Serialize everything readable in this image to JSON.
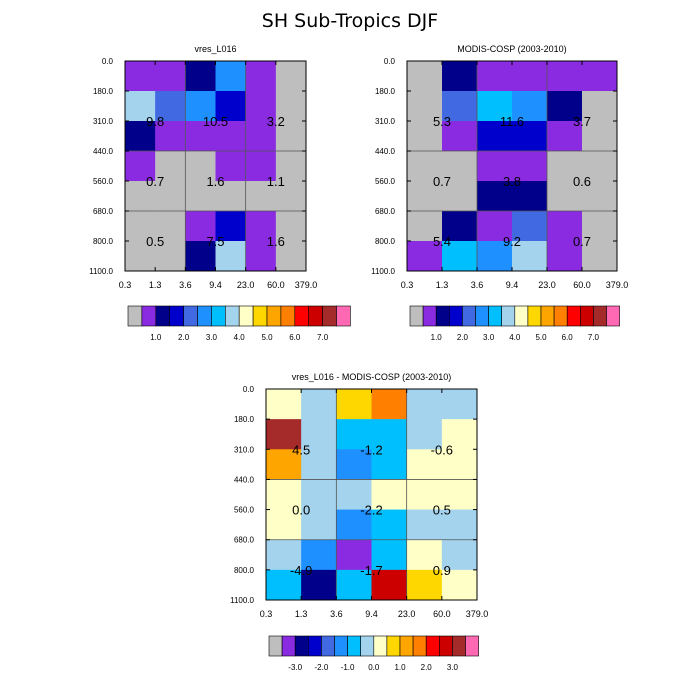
{
  "title": "SH Sub-Tropics DJF",
  "x_ticks": [
    "0.3",
    "1.3",
    "3.6",
    "9.4",
    "23.0",
    "60.0",
    "379.0"
  ],
  "y_ticks": [
    "0.0",
    "180.0",
    "310.0",
    "440.0",
    "560.0",
    "680.0",
    "800.0",
    "1100.0"
  ],
  "colors": {
    "gray": "#bebebe",
    "violet": "#8a2be2",
    "navy": "#00008b",
    "blue": "#0000cd",
    "royal": "#4169e1",
    "dodger": "#1e90ff",
    "sky": "#00bfff",
    "light": "#a4d3ee",
    "cream": "#ffffc8",
    "gold": "#ffd700",
    "orange": "#ffa500",
    "darkorange": "#ff7f00",
    "red": "#ff0000",
    "red3": "#cd0000",
    "brown": "#a52a2a",
    "pink": "#ff69b4"
  },
  "colorbar_abs": {
    "labels": [
      "1.0",
      "2.0",
      "3.0",
      "4.0",
      "5.0",
      "6.0",
      "7.0"
    ],
    "boxes": [
      "gray",
      "violet",
      "navy",
      "blue",
      "royal",
      "dodger",
      "sky",
      "light",
      "cream",
      "gold",
      "orange",
      "darkorange",
      "red",
      "red3",
      "brown",
      "pink"
    ]
  },
  "colorbar_diff": {
    "labels": [
      "-3.0",
      "-2.0",
      "-1.0",
      "0.0",
      "1.0",
      "2.0",
      "3.0"
    ],
    "boxes": [
      "gray",
      "violet",
      "navy",
      "blue",
      "royal",
      "dodger",
      "sky",
      "light",
      "cream",
      "gold",
      "orange",
      "darkorange",
      "red",
      "red3",
      "brown",
      "pink"
    ]
  },
  "chart_data": [
    {
      "type": "heatmap",
      "title": "vres_L016",
      "x_ticks": [
        "0.3",
        "1.3",
        "3.6",
        "9.4",
        "23.0",
        "60.0",
        "379.0"
      ],
      "y_ticks": [
        "0.0",
        "180.0",
        "310.0",
        "440.0",
        "560.0",
        "680.0",
        "800.0",
        "1100.0"
      ],
      "cells": [
        [
          "violet",
          "violet",
          "navy",
          "dodger",
          "violet",
          "gray"
        ],
        [
          "light",
          "royal",
          "dodger",
          "blue",
          "violet",
          "gray"
        ],
        [
          "navy",
          "violet",
          "violet",
          "violet",
          "violet",
          "gray"
        ],
        [
          "violet",
          "gray",
          "gray",
          "violet",
          "violet",
          "gray"
        ],
        [
          "gray",
          "gray",
          "gray",
          "gray",
          "gray",
          "gray"
        ],
        [
          "gray",
          "gray",
          "violet",
          "blue",
          "violet",
          "gray"
        ],
        [
          "gray",
          "gray",
          "navy",
          "light",
          "violet",
          "gray"
        ]
      ],
      "box_values": [
        [
          "9.8",
          "10.5",
          "3.2"
        ],
        [
          "0.7",
          "1.6",
          "1.1"
        ],
        [
          "0.5",
          "7.5",
          "1.6"
        ]
      ]
    },
    {
      "type": "heatmap",
      "title": "MODIS-COSP (2003-2010)",
      "x_ticks": [
        "0.3",
        "1.3",
        "3.6",
        "9.4",
        "23.0",
        "60.0",
        "379.0"
      ],
      "y_ticks": [
        "0.0",
        "180.0",
        "310.0",
        "440.0",
        "560.0",
        "680.0",
        "800.0",
        "1100.0"
      ],
      "cells": [
        [
          "gray",
          "navy",
          "violet",
          "violet",
          "violet",
          "violet"
        ],
        [
          "gray",
          "royal",
          "sky",
          "dodger",
          "navy",
          "gray"
        ],
        [
          "gray",
          "violet",
          "blue",
          "blue",
          "violet",
          "gray"
        ],
        [
          "gray",
          "gray",
          "violet",
          "violet",
          "gray",
          "gray"
        ],
        [
          "gray",
          "gray",
          "navy",
          "navy",
          "gray",
          "gray"
        ],
        [
          "gray",
          "navy",
          "violet",
          "royal",
          "violet",
          "gray"
        ],
        [
          "violet",
          "sky",
          "dodger",
          "light",
          "violet",
          "gray"
        ]
      ],
      "box_values": [
        [
          "5.3",
          "11.6",
          "3.7"
        ],
        [
          "0.7",
          "3.8",
          "0.6"
        ],
        [
          "5.4",
          "9.2",
          "0.7"
        ]
      ]
    },
    {
      "type": "heatmap",
      "title": "vres_L016 - MODIS-COSP (2003-2010)",
      "x_ticks": [
        "0.3",
        "1.3",
        "3.6",
        "9.4",
        "23.0",
        "60.0",
        "379.0"
      ],
      "y_ticks": [
        "0.0",
        "180.0",
        "310.0",
        "440.0",
        "560.0",
        "680.0",
        "800.0",
        "1100.0"
      ],
      "cells": [
        [
          "cream",
          "light",
          "gold",
          "darkorange",
          "light",
          "light"
        ],
        [
          "brown",
          "light",
          "sky",
          "sky",
          "light",
          "cream"
        ],
        [
          "orange",
          "light",
          "dodger",
          "sky",
          "cream",
          "cream"
        ],
        [
          "cream",
          "light",
          "light",
          "cream",
          "cream",
          "cream"
        ],
        [
          "cream",
          "light",
          "dodger",
          "sky",
          "light",
          "light"
        ],
        [
          "light",
          "dodger",
          "violet",
          "sky",
          "cream",
          "light"
        ],
        [
          "sky",
          "navy",
          "sky",
          "red3",
          "gold",
          "cream"
        ]
      ],
      "box_values": [
        [
          "4.5",
          "-1.2",
          "-0.6"
        ],
        [
          "0.0",
          "-2.2",
          "0.5"
        ],
        [
          "-4.9",
          "-1.7",
          "0.9"
        ]
      ]
    }
  ]
}
